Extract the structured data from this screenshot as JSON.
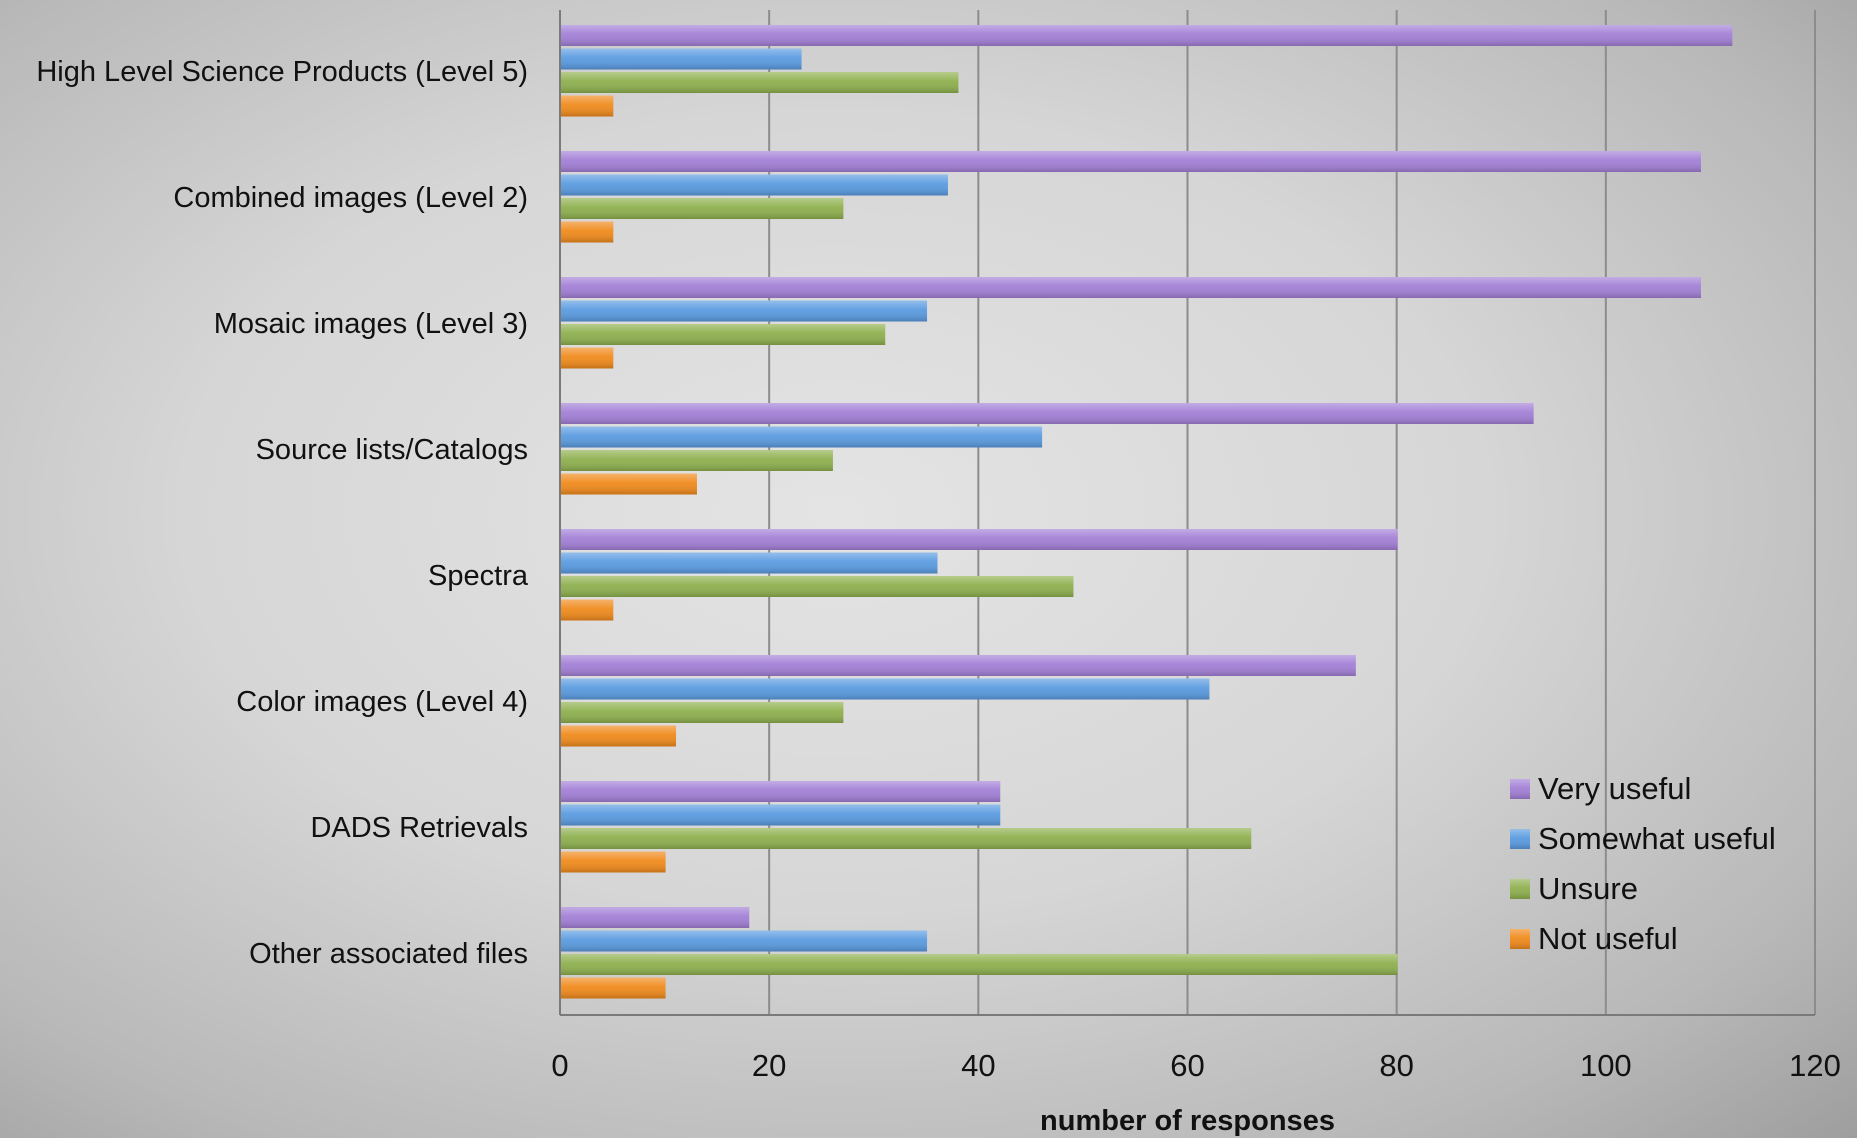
{
  "chart_data": {
    "type": "bar",
    "orientation": "horizontal",
    "title": "",
    "xlabel": "number of responses",
    "ylabel": "",
    "xlim": [
      0,
      120
    ],
    "xticks": [
      "0",
      "20",
      "40",
      "60",
      "80",
      "100",
      "120"
    ],
    "grid": true,
    "legend_position": "bottom-right",
    "categories": [
      "High Level Science Products (Level 5)",
      "Combined images (Level 2)",
      "Mosaic images (Level 3)",
      "Source lists/Catalogs",
      "Spectra",
      "Color images (Level 4)",
      "DADS Retrievals",
      "Other associated files"
    ],
    "series": [
      {
        "name": "Very useful",
        "color": "#a27fd6",
        "values": [
          112,
          109,
          109,
          93,
          80,
          76,
          42,
          18
        ]
      },
      {
        "name": "Somewhat useful",
        "color": "#5a9be0",
        "values": [
          23,
          37,
          35,
          46,
          36,
          62,
          42,
          35
        ]
      },
      {
        "name": "Unsure",
        "color": "#8eb04e",
        "values": [
          38,
          27,
          31,
          26,
          49,
          27,
          66,
          80
        ]
      },
      {
        "name": "Not useful",
        "color": "#f08a1c",
        "values": [
          5,
          5,
          5,
          13,
          5,
          11,
          10,
          10
        ]
      }
    ]
  }
}
